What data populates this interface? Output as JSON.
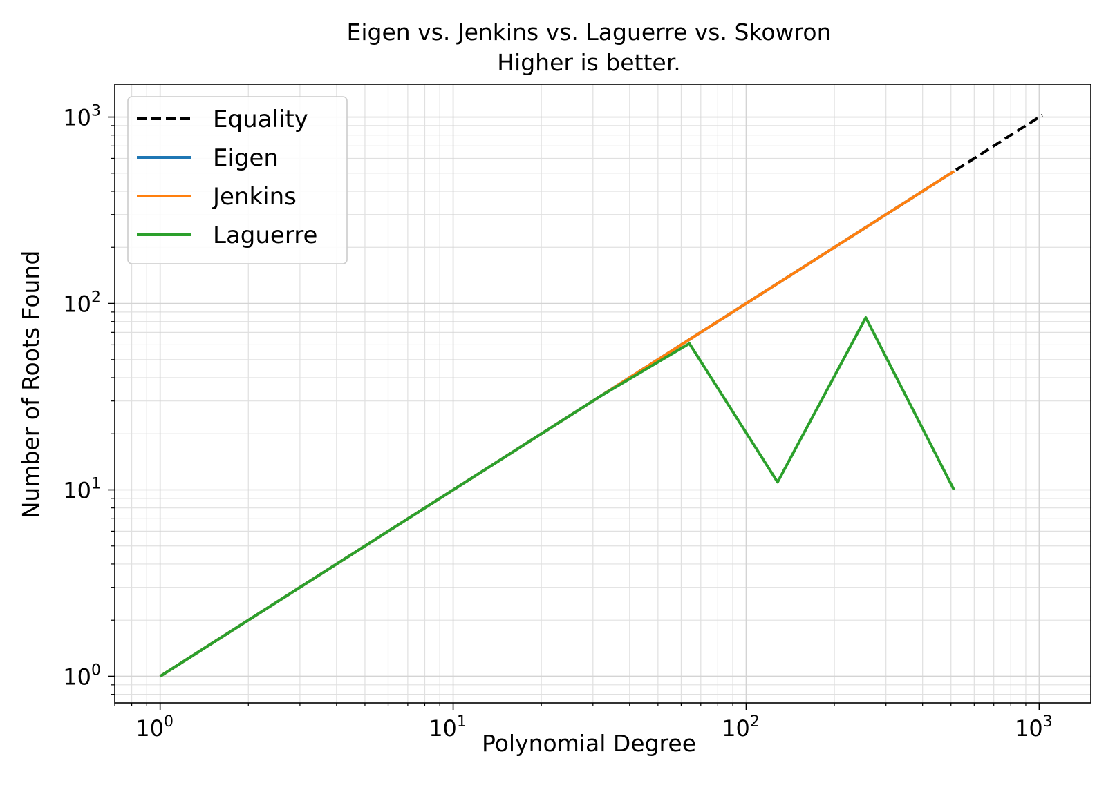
{
  "chart_data": {
    "type": "line",
    "title": "Eigen vs. Jenkins vs. Laguerre vs. Skowron",
    "subtitle": "Higher is better.",
    "xlabel": "Polynomial Degree",
    "ylabel": "Number of Roots Found",
    "xscale": "log",
    "yscale": "log",
    "xlim": [
      0.7,
      1500
    ],
    "ylim": [
      0.72,
      1500
    ],
    "grid": "major and minor",
    "legend_position": "top-left",
    "x_ticks": [
      {
        "base": "10",
        "exp": "0",
        "value": 1
      },
      {
        "base": "10",
        "exp": "1",
        "value": 10
      },
      {
        "base": "10",
        "exp": "2",
        "value": 100
      },
      {
        "base": "10",
        "exp": "3",
        "value": 1000
      }
    ],
    "y_ticks": [
      {
        "base": "10",
        "exp": "0",
        "value": 1
      },
      {
        "base": "10",
        "exp": "1",
        "value": 10
      },
      {
        "base": "10",
        "exp": "2",
        "value": 100
      },
      {
        "base": "10",
        "exp": "3",
        "value": 1000
      }
    ],
    "x": [
      1,
      2,
      4,
      8,
      16,
      32,
      64,
      128,
      256,
      512,
      1024
    ],
    "series": [
      {
        "name": "Equality",
        "color": "#000000",
        "dashed": true,
        "values": [
          1,
          2,
          4,
          8,
          16,
          32,
          64,
          128,
          256,
          512,
          1024
        ]
      },
      {
        "name": "Eigen",
        "color": "#1f77b4",
        "dashed": false,
        "values": [
          1,
          2,
          4,
          8,
          16,
          32,
          64,
          128,
          256,
          512,
          null
        ]
      },
      {
        "name": "Jenkins",
        "color": "#ff7f0e",
        "dashed": false,
        "values": [
          1,
          2,
          4,
          8,
          16,
          32,
          64,
          128,
          256,
          512,
          null
        ]
      },
      {
        "name": "Laguerre",
        "color": "#2ca02c",
        "dashed": false,
        "values": [
          1,
          2,
          4,
          8,
          16,
          32,
          61,
          11,
          84,
          10,
          null
        ]
      }
    ]
  }
}
